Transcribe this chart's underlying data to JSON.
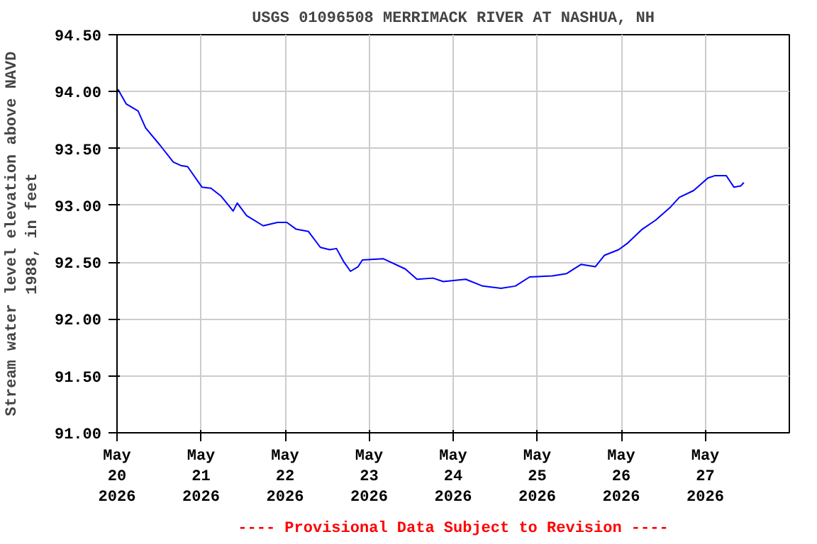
{
  "chart_data": {
    "type": "line",
    "title": "USGS 01096508 MERRIMACK RIVER AT NASHUA, NH",
    "ylabel": "Stream water level elevation above NAVD\n1988, in feet",
    "annotations": [
      "---- Provisional Data Subject to Revision ----"
    ],
    "x": [
      "2026-05-20T00:15",
      "2026-05-20T02:40",
      "2026-05-20T06:00",
      "2026-05-20T08:10",
      "2026-05-20T12:15",
      "2026-05-20T16:05",
      "2026-05-20T18:15",
      "2026-05-20T20:10",
      "2026-05-21T00:15",
      "2026-05-21T02:50",
      "2026-05-21T05:45",
      "2026-05-21T09:10",
      "2026-05-21T10:20",
      "2026-05-21T13:00",
      "2026-05-21T17:45",
      "2026-05-21T21:50",
      "2026-05-22T00:30",
      "2026-05-22T03:10",
      "2026-05-22T06:40",
      "2026-05-22T10:05",
      "2026-05-22T12:45",
      "2026-05-22T14:40",
      "2026-05-22T16:50",
      "2026-05-22T18:40",
      "2026-05-22T20:50",
      "2026-05-22T22:05",
      "2026-05-23T04:05",
      "2026-05-23T10:20",
      "2026-05-23T13:40",
      "2026-05-23T18:15",
      "2026-05-23T21:10",
      "2026-05-24T03:35",
      "2026-05-24T08:25",
      "2026-05-24T13:40",
      "2026-05-24T17:45",
      "2026-05-24T21:50",
      "2026-05-25T04:20",
      "2026-05-25T08:25",
      "2026-05-25T12:30",
      "2026-05-25T16:35",
      "2026-05-25T19:10",
      "2026-05-25T23:15",
      "2026-05-26T01:55",
      "2026-05-26T06:00",
      "2026-05-26T09:50",
      "2026-05-26T13:55",
      "2026-05-26T16:35",
      "2026-05-26T20:40",
      "2026-05-27T00:45",
      "2026-05-27T02:40",
      "2026-05-27T06:00",
      "2026-05-27T08:10",
      "2026-05-27T10:05",
      "2026-05-27T11:00"
    ],
    "series": [
      {
        "color": "#0000ff",
        "values": [
          94.02,
          93.89,
          93.83,
          93.68,
          93.53,
          93.38,
          93.35,
          93.34,
          93.16,
          93.15,
          93.08,
          92.95,
          93.02,
          92.91,
          92.82,
          92.85,
          92.85,
          92.79,
          92.77,
          92.63,
          92.61,
          92.62,
          92.5,
          92.42,
          92.46,
          92.52,
          92.53,
          92.44,
          92.35,
          92.36,
          92.33,
          92.35,
          92.29,
          92.27,
          92.29,
          92.37,
          92.38,
          92.4,
          92.48,
          92.46,
          92.56,
          92.61,
          92.67,
          92.79,
          92.87,
          92.98,
          93.07,
          93.13,
          93.24,
          93.26,
          93.26,
          93.16,
          93.17,
          93.2
        ]
      }
    ],
    "xlim": [
      "2026-05-20",
      "2026-05-28"
    ],
    "xticks": [
      {
        "value": "2026-05-20",
        "label": "May\n20\n2026"
      },
      {
        "value": "2026-05-21",
        "label": "May\n21\n2026"
      },
      {
        "value": "2026-05-22",
        "label": "May\n22\n2026"
      },
      {
        "value": "2026-05-23",
        "label": "May\n23\n2026"
      },
      {
        "value": "2026-05-24",
        "label": "May\n24\n2026"
      },
      {
        "value": "2026-05-25",
        "label": "May\n25\n2026"
      },
      {
        "value": "2026-05-26",
        "label": "May\n26\n2026"
      },
      {
        "value": "2026-05-27",
        "label": "May\n27\n2026"
      }
    ],
    "ylim": [
      91.0,
      94.5
    ],
    "yticks": [
      {
        "value": 91.0,
        "label": "91.00"
      },
      {
        "value": 91.5,
        "label": "91.50"
      },
      {
        "value": 92.0,
        "label": "92.00"
      },
      {
        "value": 92.5,
        "label": "92.50"
      },
      {
        "value": 93.0,
        "label": "93.00"
      },
      {
        "value": 93.5,
        "label": "93.50"
      },
      {
        "value": 94.0,
        "label": "94.00"
      },
      {
        "value": 94.5,
        "label": "94.50"
      }
    ],
    "grid": true,
    "marker": "none",
    "line_style": "solid"
  }
}
